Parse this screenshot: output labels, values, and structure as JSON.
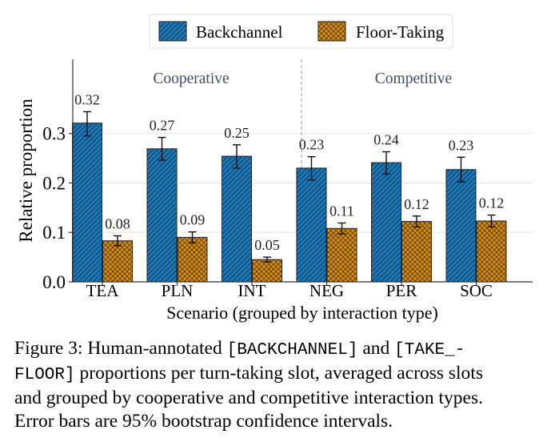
{
  "chart_data": {
    "type": "bar",
    "categories": [
      "TEA",
      "PLN",
      "INT",
      "NEG",
      "PER",
      "SOC"
    ],
    "series": [
      {
        "name": "Backchannel",
        "color": "#1f77b4",
        "values": [
          0.32,
          0.27,
          0.25,
          0.23,
          0.24,
          0.23
        ],
        "plot_values": [
          0.321,
          0.269,
          0.254,
          0.23,
          0.241,
          0.227
        ],
        "error_low": [
          0.295,
          0.246,
          0.23,
          0.206,
          0.218,
          0.202
        ],
        "error_high": [
          0.344,
          0.292,
          0.277,
          0.253,
          0.263,
          0.252
        ],
        "labels": [
          "0.32",
          "0.27",
          "0.25",
          "0.23",
          "0.24",
          "0.23"
        ]
      },
      {
        "name": "Floor-Taking",
        "color": "#d9900f",
        "values": [
          0.08,
          0.09,
          0.05,
          0.11,
          0.12,
          0.12
        ],
        "plot_values": [
          0.083,
          0.09,
          0.045,
          0.108,
          0.122,
          0.123
        ],
        "error_low": [
          0.073,
          0.079,
          0.04,
          0.097,
          0.111,
          0.111
        ],
        "error_high": [
          0.093,
          0.101,
          0.05,
          0.119,
          0.133,
          0.135
        ],
        "labels": [
          "0.08",
          "0.09",
          "0.05",
          "0.11",
          "0.12",
          "0.12"
        ]
      }
    ],
    "groups": [
      {
        "label": "Cooperative",
        "categories": [
          "TEA",
          "PLN",
          "INT"
        ]
      },
      {
        "label": "Competitive",
        "categories": [
          "NEG",
          "PER",
          "SOC"
        ]
      }
    ],
    "xlabel": "Scenario (grouped by interaction type)",
    "ylabel": "Relative proportion",
    "ylim": [
      0,
      0.45
    ],
    "yticks": [
      0.0,
      0.1,
      0.2,
      0.3
    ],
    "ytick_labels": [
      "0.0",
      "0.1",
      "0.2",
      "0.3"
    ],
    "grid": true,
    "legend_placement": "top-center",
    "hatch": [
      "diagonal",
      "crosshatch"
    ]
  },
  "caption": {
    "line1_a": "Figure 3:  Human-annotated ",
    "token1": "[BACKCHANNEL]",
    "line1_b": " and ",
    "token2a": "[TAKE_-",
    "token2b": "FLOOR]",
    "line2_b": " proportions per turn-taking slot, averaged across slots",
    "line3": "and grouped by cooperative and competitive interaction types.",
    "line4": "Error bars are 95% bootstrap confidence intervals."
  }
}
